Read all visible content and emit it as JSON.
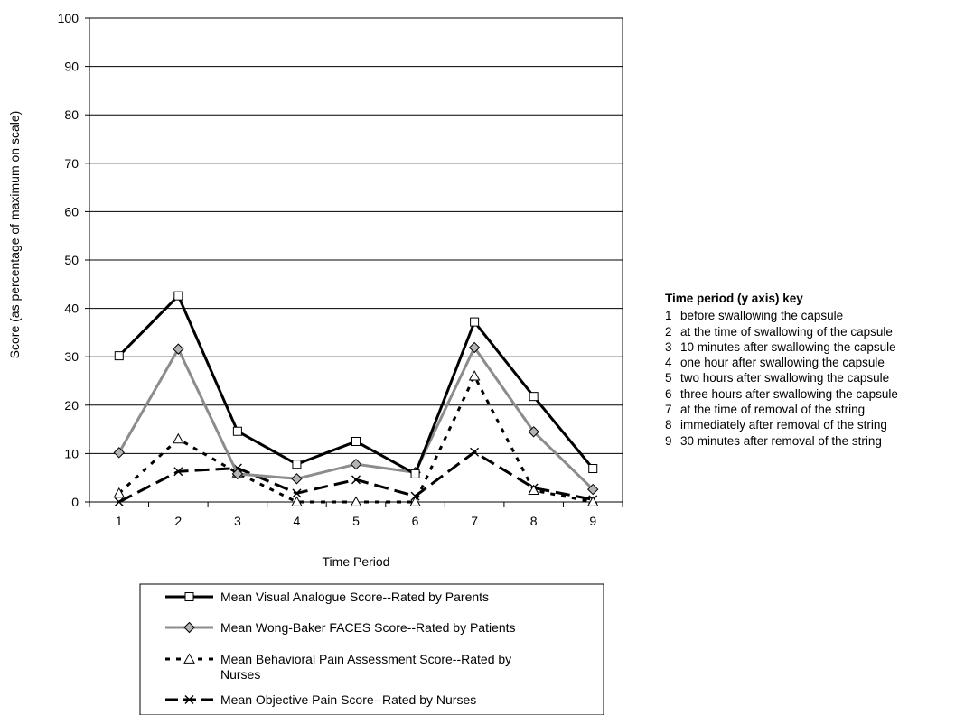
{
  "chart_data": {
    "type": "line",
    "xlabel": "Time Period",
    "ylabel": "Score (as percentage of maximum on scale)",
    "ylim": [
      0,
      100
    ],
    "yticks": [
      "0",
      "10",
      "20",
      "30",
      "40",
      "50",
      "60",
      "70",
      "80",
      "90",
      "100"
    ],
    "categories": [
      "1",
      "2",
      "3",
      "4",
      "5",
      "6",
      "7",
      "8",
      "9"
    ],
    "grid": "horizontal",
    "legend_position": "bottom",
    "series": [
      {
        "name": "Mean Visual Analogue Score--Rated by Parents",
        "color": "#000000",
        "dash": "solid",
        "marker": "square",
        "values": [
          30.2,
          42.6,
          14.6,
          7.8,
          12.5,
          5.8,
          37.2,
          21.8,
          6.9
        ]
      },
      {
        "name": "Mean Wong-Baker FACES Score--Rated by Patients",
        "color": "#8c8c8c",
        "dash": "solid",
        "marker": "diamond",
        "values": [
          10.2,
          31.6,
          5.8,
          4.8,
          7.8,
          6.1,
          31.9,
          14.5,
          2.6
        ]
      },
      {
        "name": "Mean Behavioral Pain Assessment Score--Rated by Nurses",
        "color": "#000000",
        "dash": "dotted",
        "marker": "triangle",
        "values": [
          1.8,
          13.0,
          6.0,
          0.0,
          0.0,
          0.0,
          26.0,
          2.4,
          0.0
        ]
      },
      {
        "name": "Mean Objective Pain Score--Rated by Nurses",
        "color": "#000000",
        "dash": "dashed",
        "marker": "x",
        "values": [
          0.0,
          6.3,
          7.0,
          1.8,
          4.6,
          1.2,
          10.3,
          2.9,
          0.5
        ]
      }
    ]
  },
  "key": {
    "title": "Time period (y axis) key",
    "items": [
      {
        "num": "1",
        "text": "before swallowing the capsule"
      },
      {
        "num": "2",
        "text": "at the time of swallowing of the capsule"
      },
      {
        "num": "3",
        "text": "10 minutes after swallowing the capsule"
      },
      {
        "num": "4",
        "text": "one hour after swallowing the capsule"
      },
      {
        "num": "5",
        "text": "two hours after swallowing the capsule"
      },
      {
        "num": "6",
        "text": "three hours after swallowing the capsule"
      },
      {
        "num": "7",
        "text": "at the time of removal of the string"
      },
      {
        "num": "8",
        "text": "immediately after removal of the string"
      },
      {
        "num": "9",
        "text": "30 minutes after removal of the string"
      }
    ]
  }
}
